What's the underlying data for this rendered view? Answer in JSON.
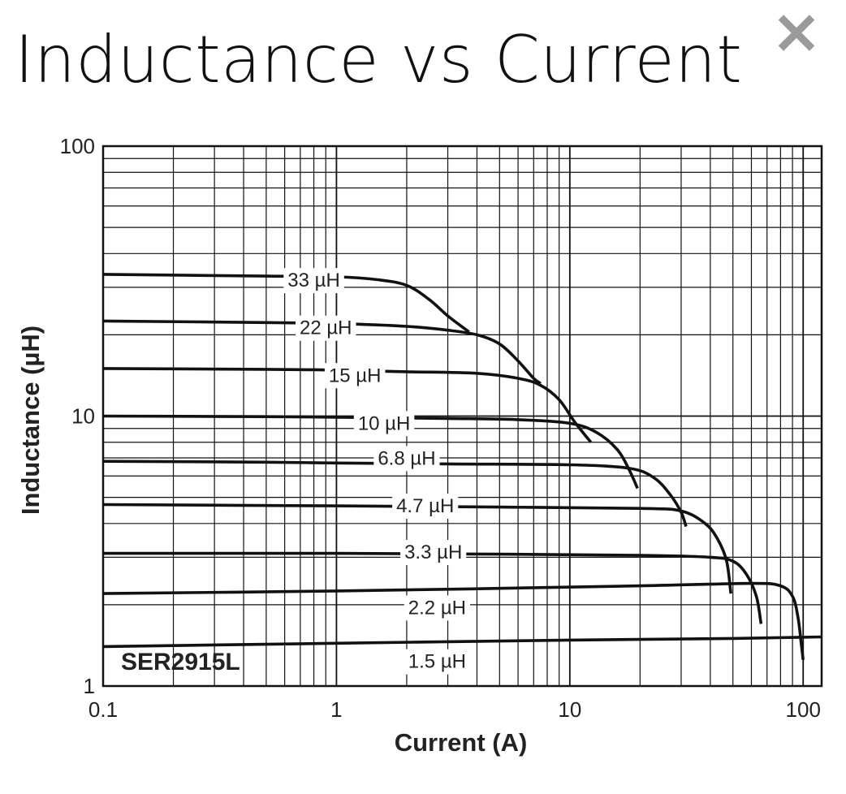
{
  "header": {
    "title": "Inductance vs Current",
    "close_icon": "close-icon"
  },
  "chart_data": {
    "type": "line",
    "title": "",
    "xlabel": "Current (A)",
    "ylabel": "Inductance (µH)",
    "x_scale": "log",
    "y_scale": "log",
    "xlim": [
      0.1,
      120
    ],
    "ylim": [
      1,
      100
    ],
    "x_ticks": [
      {
        "value": 0.1,
        "label": "0.1"
      },
      {
        "value": 1,
        "label": "1"
      },
      {
        "value": 10,
        "label": "10"
      },
      {
        "value": 100,
        "label": "100"
      }
    ],
    "y_ticks": [
      {
        "value": 1,
        "label": "1"
      },
      {
        "value": 10,
        "label": "10"
      },
      {
        "value": 100,
        "label": "100"
      }
    ],
    "grid": true,
    "model_label": "SER2915L",
    "series": [
      {
        "name": "33 µH",
        "label_at": [
          0.8,
          31.5
        ],
        "points": [
          [
            0.1,
            33.5
          ],
          [
            0.5,
            33
          ],
          [
            1.0,
            32.8
          ],
          [
            1.5,
            32
          ],
          [
            2.0,
            30.5
          ],
          [
            2.5,
            27
          ],
          [
            3.0,
            23.5
          ],
          [
            3.7,
            20.5
          ]
        ]
      },
      {
        "name": "22 µH",
        "label_at": [
          0.9,
          21
        ],
        "points": [
          [
            0.1,
            22.5
          ],
          [
            0.5,
            22.2
          ],
          [
            1.0,
            22
          ],
          [
            2.0,
            21.5
          ],
          [
            3.0,
            20.8
          ],
          [
            4.0,
            20
          ],
          [
            5.0,
            18.5
          ],
          [
            6.0,
            16
          ],
          [
            7.0,
            13.8
          ],
          [
            7.5,
            13.2
          ]
        ]
      },
      {
        "name": "15 µH",
        "label_at": [
          1.2,
          14
        ],
        "points": [
          [
            0.1,
            15
          ],
          [
            0.5,
            14.9
          ],
          [
            1.0,
            14.8
          ],
          [
            2.0,
            14.6
          ],
          [
            4.0,
            14.4
          ],
          [
            6.0,
            13.8
          ],
          [
            7.5,
            13
          ],
          [
            9.0,
            11.5
          ],
          [
            10.5,
            9.5
          ],
          [
            12.3,
            8
          ]
        ]
      },
      {
        "name": "10 µH",
        "label_at": [
          1.6,
          9.3
        ],
        "points": [
          [
            0.1,
            10
          ],
          [
            0.5,
            9.95
          ],
          [
            1.0,
            9.9
          ],
          [
            3.0,
            9.8
          ],
          [
            6.0,
            9.7
          ],
          [
            10.0,
            9.4
          ],
          [
            13.0,
            8.7
          ],
          [
            16.0,
            7.5
          ],
          [
            18.0,
            6.3
          ],
          [
            19.5,
            5.4
          ]
        ]
      },
      {
        "name": "6.8 µH",
        "label_at": [
          2.0,
          6.9
        ],
        "points": [
          [
            0.1,
            6.8
          ],
          [
            0.5,
            6.75
          ],
          [
            1.0,
            6.7
          ],
          [
            3.0,
            6.65
          ],
          [
            10.0,
            6.6
          ],
          [
            18.0,
            6.4
          ],
          [
            23.0,
            5.9
          ],
          [
            27.0,
            5.1
          ],
          [
            30.0,
            4.4
          ],
          [
            31.5,
            3.9
          ]
        ]
      },
      {
        "name": "4.7 µH",
        "label_at": [
          2.4,
          4.6
        ],
        "points": [
          [
            0.1,
            4.7
          ],
          [
            1.0,
            4.65
          ],
          [
            5.0,
            4.6
          ],
          [
            20.0,
            4.55
          ],
          [
            30.0,
            4.45
          ],
          [
            38.0,
            4.0
          ],
          [
            43.0,
            3.5
          ],
          [
            47.0,
            2.9
          ],
          [
            49.0,
            2.2
          ]
        ]
      },
      {
        "name": "3.3 µH",
        "label_at": [
          2.6,
          3.1
        ],
        "points": [
          [
            0.1,
            3.1
          ],
          [
            1.0,
            3.1
          ],
          [
            5.0,
            3.08
          ],
          [
            20.0,
            3.05
          ],
          [
            40.0,
            3.0
          ],
          [
            50.0,
            2.9
          ],
          [
            57.0,
            2.6
          ],
          [
            63.0,
            2.15
          ],
          [
            66.0,
            1.7
          ]
        ]
      },
      {
        "name": "2.2 µH",
        "label_at": [
          2.7,
          1.93
        ],
        "points": [
          [
            0.1,
            2.2
          ],
          [
            1.0,
            2.25
          ],
          [
            5.0,
            2.3
          ],
          [
            20.0,
            2.35
          ],
          [
            60.0,
            2.4
          ],
          [
            80.0,
            2.35
          ],
          [
            90.0,
            2.15
          ],
          [
            95.0,
            1.8
          ],
          [
            98.0,
            1.45
          ],
          [
            100.0,
            1.25
          ]
        ]
      },
      {
        "name": "1.5 µH",
        "label_at": [
          2.7,
          1.22
        ],
        "points": [
          [
            0.1,
            1.4
          ],
          [
            1.0,
            1.44
          ],
          [
            10.0,
            1.48
          ],
          [
            50.0,
            1.5
          ],
          [
            120.0,
            1.52
          ]
        ]
      }
    ]
  }
}
